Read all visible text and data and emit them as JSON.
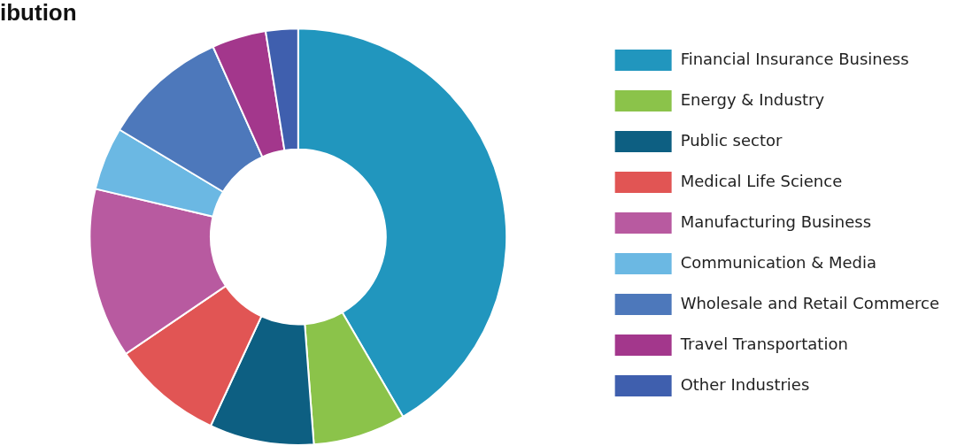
{
  "chart_data": {
    "type": "donut",
    "title": "ibution",
    "legend": "right",
    "categories": [
      "Financial Insurance Business",
      "Energy & Industry",
      "Public sector",
      "Medical Life Science",
      "Manufacturing Business",
      "Communication & Media",
      "Wholesale and Retail Commerce",
      "Travel Transportation",
      "Other Industries"
    ],
    "values": [
      41.6,
      7.2,
      8.1,
      8.6,
      13.2,
      4.9,
      9.7,
      4.2,
      2.5
    ],
    "colors": [
      "#2196be",
      "#8bc34a",
      "#0d5f82",
      "#e15554",
      "#b85aa0",
      "#6bb8e3",
      "#4d78bb",
      "#a3378c",
      "#3f5fae"
    ]
  }
}
